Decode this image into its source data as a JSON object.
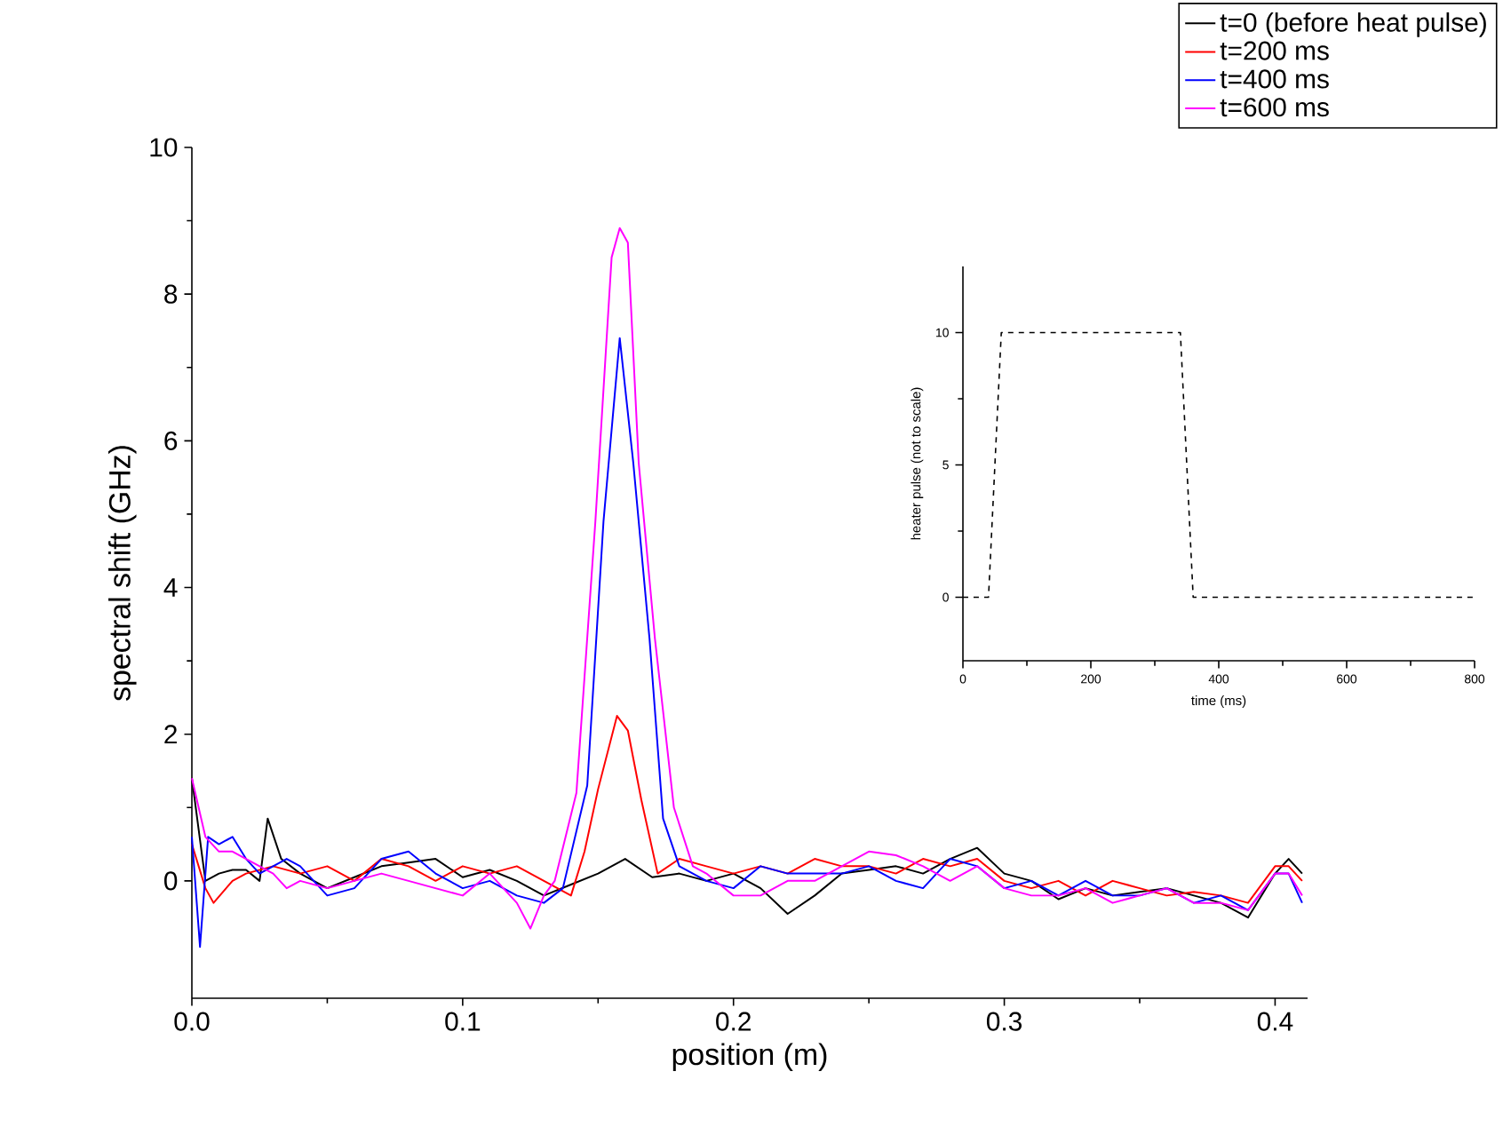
{
  "chart_data": [
    {
      "type": "line",
      "xlabel": "position (m)",
      "ylabel": "spectral shift (GHz)",
      "xlim": [
        0,
        0.412
      ],
      "ylim": [
        -1.6,
        10
      ],
      "xticks": [
        {
          "value": 0,
          "label": "0.0"
        },
        0.1,
        0.2,
        0.3,
        0.4
      ],
      "yticks": [
        0,
        2,
        4,
        6,
        8,
        10
      ],
      "legend": "top right",
      "series": [
        {
          "name": "t=0 (before heat pulse)",
          "color": "#000000",
          "x": [
            0,
            0.005,
            0.01,
            0.015,
            0.02,
            0.025,
            0.028,
            0.033,
            0.04,
            0.05,
            0.06,
            0.07,
            0.08,
            0.09,
            0.1,
            0.11,
            0.12,
            0.13,
            0.14,
            0.15,
            0.16,
            0.17,
            0.18,
            0.19,
            0.2,
            0.21,
            0.22,
            0.23,
            0.24,
            0.25,
            0.26,
            0.27,
            0.28,
            0.29,
            0.3,
            0.31,
            0.32,
            0.33,
            0.34,
            0.35,
            0.36,
            0.37,
            0.38,
            0.39,
            0.4,
            0.405,
            0.41
          ],
          "values": [
            1.4,
            0.0,
            0.1,
            0.15,
            0.15,
            0.0,
            0.85,
            0.3,
            0.1,
            -0.1,
            0.05,
            0.2,
            0.25,
            0.3,
            0.05,
            0.15,
            0.0,
            -0.2,
            -0.05,
            0.1,
            0.3,
            0.05,
            0.1,
            0.0,
            0.1,
            -0.1,
            -0.45,
            -0.2,
            0.1,
            0.15,
            0.2,
            0.1,
            0.3,
            0.45,
            0.1,
            0.0,
            -0.25,
            -0.1,
            -0.2,
            -0.15,
            -0.1,
            -0.2,
            -0.3,
            -0.5,
            0.1,
            0.3,
            0.1
          ]
        },
        {
          "name": "t=200 ms",
          "color": "#ff0000",
          "x": [
            0,
            0.005,
            0.008,
            0.015,
            0.02,
            0.03,
            0.04,
            0.05,
            0.06,
            0.07,
            0.08,
            0.09,
            0.1,
            0.11,
            0.12,
            0.13,
            0.14,
            0.145,
            0.15,
            0.157,
            0.161,
            0.166,
            0.172,
            0.18,
            0.19,
            0.2,
            0.21,
            0.22,
            0.23,
            0.24,
            0.25,
            0.26,
            0.27,
            0.28,
            0.29,
            0.3,
            0.31,
            0.32,
            0.33,
            0.34,
            0.35,
            0.36,
            0.37,
            0.38,
            0.39,
            0.4,
            0.405,
            0.41
          ],
          "values": [
            0.5,
            -0.1,
            -0.3,
            0.0,
            0.1,
            0.2,
            0.1,
            0.2,
            0.0,
            0.3,
            0.2,
            0.0,
            0.2,
            0.1,
            0.2,
            0.0,
            -0.2,
            0.4,
            1.25,
            2.25,
            2.05,
            1.1,
            0.1,
            0.3,
            0.2,
            0.1,
            0.2,
            0.1,
            0.3,
            0.2,
            0.2,
            0.1,
            0.3,
            0.2,
            0.3,
            0.0,
            -0.1,
            0.0,
            -0.2,
            0.0,
            -0.1,
            -0.2,
            -0.15,
            -0.2,
            -0.3,
            0.2,
            0.2,
            0.0
          ]
        },
        {
          "name": "t=400 ms",
          "color": "#0000ff",
          "x": [
            0,
            0.003,
            0.006,
            0.01,
            0.015,
            0.02,
            0.025,
            0.035,
            0.04,
            0.05,
            0.06,
            0.07,
            0.08,
            0.09,
            0.1,
            0.11,
            0.12,
            0.13,
            0.137,
            0.146,
            0.152,
            0.158,
            0.163,
            0.169,
            0.174,
            0.18,
            0.19,
            0.2,
            0.21,
            0.22,
            0.23,
            0.24,
            0.25,
            0.26,
            0.27,
            0.28,
            0.29,
            0.3,
            0.31,
            0.32,
            0.33,
            0.34,
            0.35,
            0.36,
            0.37,
            0.38,
            0.39,
            0.4,
            0.405,
            0.41
          ],
          "values": [
            0.6,
            -0.9,
            0.6,
            0.5,
            0.6,
            0.3,
            0.1,
            0.3,
            0.2,
            -0.2,
            -0.1,
            0.3,
            0.4,
            0.1,
            -0.1,
            0.0,
            -0.2,
            -0.3,
            -0.1,
            1.3,
            4.9,
            7.4,
            5.7,
            3.3,
            0.85,
            0.2,
            0.0,
            -0.1,
            0.2,
            0.1,
            0.1,
            0.1,
            0.2,
            0.0,
            -0.1,
            0.3,
            0.2,
            -0.1,
            0.0,
            -0.2,
            0.0,
            -0.2,
            -0.2,
            -0.1,
            -0.3,
            -0.2,
            -0.4,
            0.1,
            0.1,
            -0.3
          ]
        },
        {
          "name": "t=600 ms",
          "color": "#ff00ff",
          "x": [
            0,
            0.005,
            0.01,
            0.015,
            0.02,
            0.03,
            0.035,
            0.04,
            0.05,
            0.06,
            0.07,
            0.08,
            0.09,
            0.1,
            0.11,
            0.12,
            0.125,
            0.13,
            0.134,
            0.142,
            0.149,
            0.155,
            0.158,
            0.161,
            0.165,
            0.171,
            0.178,
            0.185,
            0.19,
            0.2,
            0.21,
            0.22,
            0.23,
            0.24,
            0.25,
            0.26,
            0.27,
            0.28,
            0.29,
            0.3,
            0.31,
            0.32,
            0.33,
            0.34,
            0.35,
            0.36,
            0.37,
            0.38,
            0.39,
            0.4,
            0.405,
            0.41
          ],
          "values": [
            1.4,
            0.6,
            0.4,
            0.4,
            0.3,
            0.1,
            -0.1,
            0.0,
            -0.1,
            0.0,
            0.1,
            0.0,
            -0.1,
            -0.2,
            0.1,
            -0.3,
            -0.65,
            -0.2,
            0.0,
            1.2,
            4.9,
            8.5,
            8.9,
            8.7,
            5.7,
            3.3,
            1.0,
            0.2,
            0.1,
            -0.2,
            -0.2,
            0.0,
            0.0,
            0.2,
            0.4,
            0.35,
            0.2,
            0.0,
            0.2,
            -0.1,
            -0.2,
            -0.2,
            -0.1,
            -0.3,
            -0.2,
            -0.1,
            -0.3,
            -0.3,
            -0.4,
            0.1,
            0.1,
            -0.2
          ]
        }
      ]
    },
    {
      "type": "line",
      "xlabel": "time (ms)",
      "ylabel": "heater pulse (not to scale)",
      "xlim": [
        0,
        800
      ],
      "ylim": [
        -2.4,
        12.5
      ],
      "xticks": [
        0,
        200,
        400,
        600,
        800
      ],
      "yticks": [
        0,
        5,
        10
      ],
      "line_style": "dashed",
      "series": [
        {
          "color": "#000000",
          "x": [
            0,
            40,
            60,
            340,
            360,
            800
          ],
          "values": [
            0,
            0,
            10,
            10,
            0,
            0
          ]
        }
      ]
    }
  ]
}
